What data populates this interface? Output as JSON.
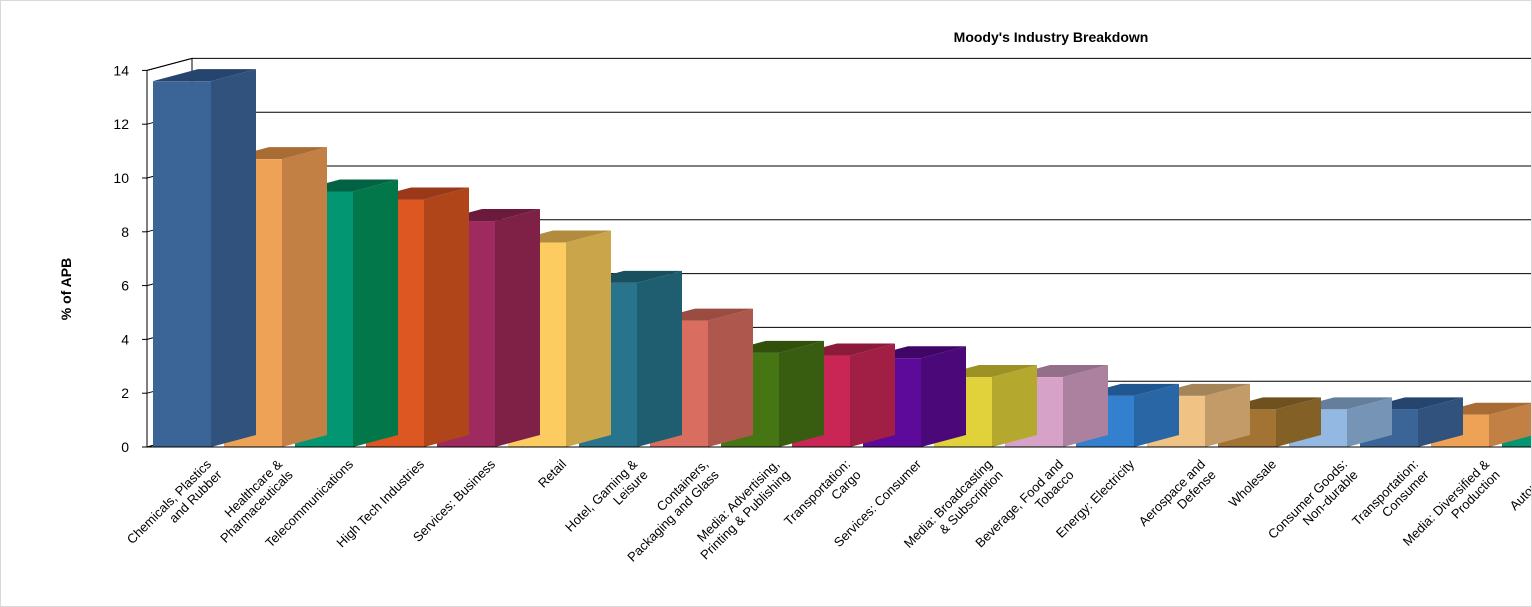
{
  "chart_data": {
    "type": "bar",
    "title": "Moody's Industry Breakdown",
    "xlabel": "",
    "ylabel": "% of APB",
    "ylim": [
      0,
      14
    ],
    "yticks": [
      "0",
      "2",
      "4",
      "6",
      "8",
      "10",
      "12",
      "14"
    ],
    "grid": true,
    "three_d": true,
    "categories": [
      [
        "Chemicals, Plastics",
        "and Rubber"
      ],
      [
        "Healthcare &",
        "Pharmaceuticals"
      ],
      [
        "Telecommunications"
      ],
      [
        "High Tech Industries"
      ],
      [
        "Services: Business"
      ],
      [
        "Retail"
      ],
      [
        "Hotel, Gaming &",
        "Leisure"
      ],
      [
        "Containers,",
        "Packaging and Glass"
      ],
      [
        "Media: Advertising,",
        "Printing & Publishing"
      ],
      [
        "Transportation:",
        "Cargo"
      ],
      [
        "Services: Consumer"
      ],
      [
        "Media: Broadcasting",
        "& Subscription"
      ],
      [
        "Beverage, Food and",
        "Tobacco"
      ],
      [
        "Energy: Electricity"
      ],
      [
        "Aerospace and",
        "Defense"
      ],
      [
        "Wholesale"
      ],
      [
        "Consumer Goods:",
        "Non-durable"
      ],
      [
        "Transportation:",
        "Consumer"
      ],
      [
        "Media: Diversified &",
        "Production"
      ],
      [
        "Automotive"
      ]
    ],
    "values": [
      13.6,
      10.7,
      9.5,
      9.2,
      8.4,
      7.6,
      6.1,
      4.7,
      3.5,
      3.4,
      3.3,
      2.6,
      2.6,
      1.9,
      1.9,
      1.4,
      1.4,
      1.4,
      1.2,
      1.2
    ],
    "colors": [
      "#3B6497",
      "#EEA255",
      "#039672",
      "#DC5722",
      "#9E2A60",
      "#FCCC61",
      "#28748D",
      "#D96D60",
      "#467514",
      "#C92655",
      "#5D0A9A",
      "#E1D23B",
      "#D7A2C7",
      "#3380CF",
      "#F0C284",
      "#A27333",
      "#93B9E3",
      "#3B6497",
      "#EEA255",
      "#039672"
    ],
    "side_colors": [
      "#30527C",
      "#C38045",
      "#02774A",
      "#B04519",
      "#7F2047",
      "#CBA549",
      "#1F5D70",
      "#AE574C",
      "#385D10",
      "#A11E44",
      "#4A0879",
      "#B4A82F",
      "#AC819F",
      "#2866A6",
      "#C29B69",
      "#826026",
      "#7594B6",
      "#30527C",
      "#C38045",
      "#02774A"
    ],
    "top_colors": [
      "#25456F",
      "#AA6C35",
      "#016343",
      "#99391A",
      "#6C1A3C",
      "#B18C3E",
      "#19505F",
      "#9A4C41",
      "#30500C",
      "#8C1A3A",
      "#3F0668",
      "#9B9125",
      "#946F8A",
      "#215790",
      "#A6845A",
      "#6E511F",
      "#647E9C",
      "#25456F",
      "#AA6C35",
      "#016343"
    ]
  }
}
